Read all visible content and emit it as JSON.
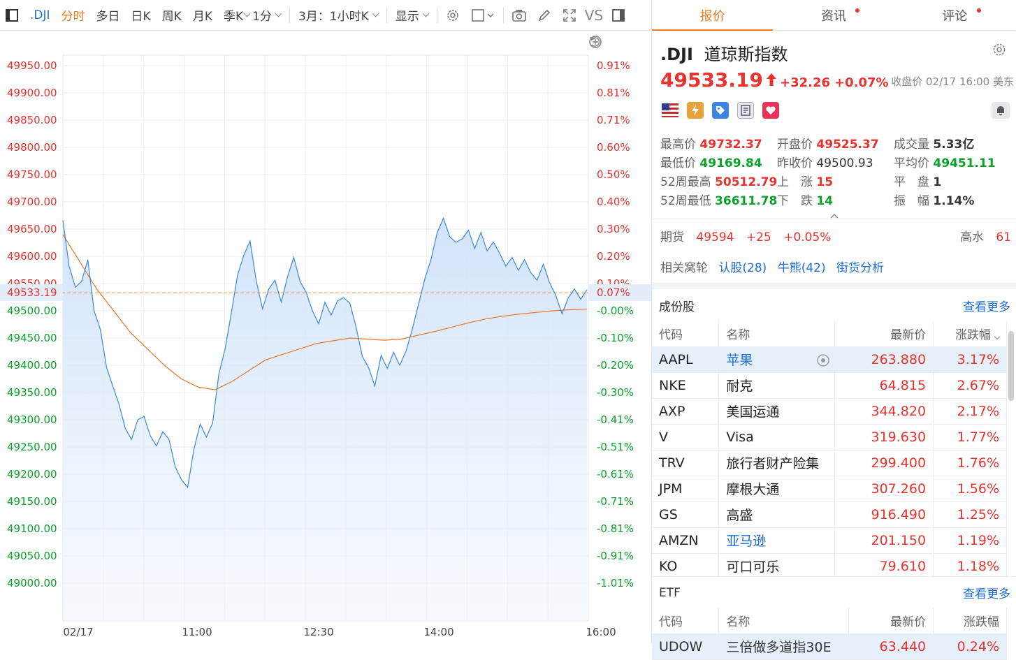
{
  "toolbar": {
    "symbol": ".DJI",
    "periods": [
      "分时",
      "多日",
      "日K",
      "周K",
      "月K",
      "季K"
    ],
    "active_period": "分时",
    "interval": "1分",
    "range": "3月：1小时K",
    "display": "显示",
    "vs": "VS"
  },
  "chart": {
    "price_ticks": [
      "49950.00",
      "49900.00",
      "49850.00",
      "49800.00",
      "49750.00",
      "49700.00",
      "49650.00",
      "49600.00",
      "49550.00",
      "49500.00",
      "49450.00",
      "49400.00",
      "49350.00",
      "49300.00",
      "49250.00",
      "49200.00",
      "49150.00",
      "49100.00",
      "49050.00",
      "49000.00"
    ],
    "pct_ticks": [
      "0.91%",
      "0.81%",
      "0.71%",
      "0.60%",
      "0.50%",
      "0.40%",
      "0.30%",
      "0.20%",
      "0.10%",
      "-0.00%",
      "-0.10%",
      "-0.20%",
      "-0.30%",
      "-0.41%",
      "-0.51%",
      "-0.61%",
      "-0.71%",
      "-0.81%",
      "-0.91%",
      "-1.01%"
    ],
    "current_price_label": "49533.19",
    "current_pct_label": "0.07%",
    "x_labels": [
      "02/17",
      "11:00",
      "12:30",
      "14:00",
      "16:00"
    ],
    "prev_close": 49500.93,
    "price_series": [
      49660,
      49580,
      49545,
      49560,
      49590,
      49500,
      49470,
      49390,
      49360,
      49330,
      49290,
      49260,
      49300,
      49310,
      49265,
      49250,
      49280,
      49270,
      49210,
      49190,
      49180,
      49240,
      49290,
      49270,
      49300,
      49380,
      49430,
      49500,
      49560,
      49600,
      49630,
      49560,
      49500,
      49540,
      49560,
      49510,
      49560,
      49600,
      49560,
      49530,
      49500,
      49480,
      49510,
      49490,
      49520,
      49530,
      49510,
      49470,
      49420,
      49390,
      49360,
      49420,
      49400,
      49420,
      49400,
      49430,
      49460,
      49510,
      49560,
      49600,
      49640,
      49670,
      49640,
      49620,
      49630,
      49650,
      49620,
      49640,
      49610,
      49630,
      49600,
      49580,
      49600,
      49580,
      49590,
      49570,
      49560,
      49580,
      49550,
      49530,
      49500,
      49520,
      49540,
      49525,
      49533
    ],
    "avg_series": [
      49640,
      49590,
      49540,
      49500,
      49460,
      49430,
      49400,
      49375,
      49360,
      49355,
      49370,
      49390,
      49410,
      49420,
      49430,
      49440,
      49445,
      49450,
      49448,
      49446,
      49448,
      49455,
      49462,
      49470,
      49478,
      49485,
      49490,
      49494,
      49497,
      49500,
      49502,
      49503
    ]
  },
  "quote": {
    "symbol": ".DJI",
    "name": "道琼斯指数",
    "price": "49533.19",
    "change": "+32.26",
    "change_pct": "+0.07%",
    "close_note": "收盘价 02/17 16:00 美东",
    "stats": {
      "high_label": "最高价",
      "high": "49732.37",
      "open_label": "开盘价",
      "open": "49525.37",
      "volume_label": "成交量",
      "volume": "5.33亿",
      "low_label": "最低价",
      "low": "49169.84",
      "prev_label": "昨收价",
      "prev": "49500.93",
      "avg_label": "平均价",
      "avg": "49451.11",
      "w52h_label": "52周最高",
      "w52h": "50512.79",
      "up_label": "上　涨",
      "up": "15",
      "flat_label": "平　盘",
      "flat": "1",
      "w52l_label": "52周最低",
      "w52l": "36611.78",
      "down_label": "下　跌",
      "down": "14",
      "amp_label": "振　幅",
      "amp": "1.14%"
    },
    "futures_label": "期货",
    "futures_price": "49594",
    "futures_change": "+25",
    "futures_pct": "+0.05%",
    "premium_label": "高水",
    "premium": "61",
    "warrants_label": "相关窝轮",
    "warrants_call": "认股(28)",
    "warrants_bull": "牛熊(42)",
    "warrants_analysis": "街货分析"
  },
  "tabs": [
    "报价",
    "资讯",
    "评论"
  ],
  "constituents": {
    "title": "成份股",
    "more": "查看更多",
    "headers": [
      "代码",
      "名称",
      "最新价",
      "涨跌幅"
    ],
    "rows": [
      {
        "code": "AAPL",
        "name": "苹果",
        "price": "263.880",
        "pct": "3.17%",
        "link": true
      },
      {
        "code": "NKE",
        "name": "耐克",
        "price": "64.815",
        "pct": "2.67%",
        "link": false
      },
      {
        "code": "AXP",
        "name": "美国运通",
        "price": "344.820",
        "pct": "2.17%",
        "link": false
      },
      {
        "code": "V",
        "name": "Visa",
        "price": "319.630",
        "pct": "1.77%",
        "link": false
      },
      {
        "code": "TRV",
        "name": "旅行者财产险集",
        "price": "299.400",
        "pct": "1.76%",
        "link": false
      },
      {
        "code": "JPM",
        "name": "摩根大通",
        "price": "307.260",
        "pct": "1.56%",
        "link": false
      },
      {
        "code": "GS",
        "name": "高盛",
        "price": "916.490",
        "pct": "1.25%",
        "link": false
      },
      {
        "code": "AMZN",
        "name": "亚马逊",
        "price": "201.150",
        "pct": "1.19%",
        "link": true
      },
      {
        "code": "KO",
        "name": "可口可乐",
        "price": "79.610",
        "pct": "1.18%",
        "link": false
      }
    ]
  },
  "etf": {
    "title": "ETF",
    "more": "查看更多",
    "headers": [
      "代码",
      "名称",
      "最新价",
      "涨跌幅"
    ],
    "rows": [
      {
        "code": "UDOW",
        "name": "三倍做多道指30E",
        "price": "63.440",
        "pct": "0.24%"
      }
    ]
  }
}
